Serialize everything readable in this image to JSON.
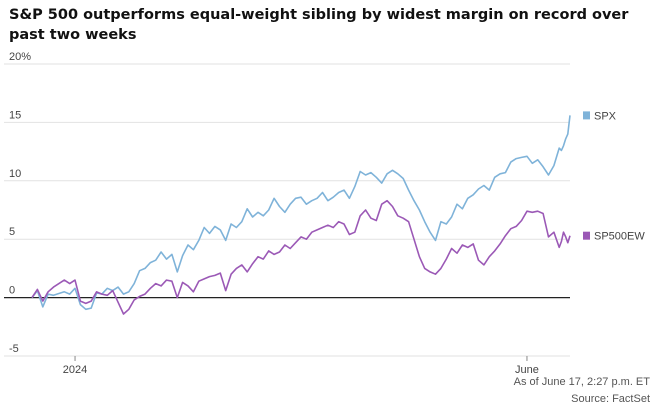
{
  "chart_data": {
    "type": "line",
    "title": "S&P 500 outperforms equal-weight sibling by widest margin on record over past two weeks",
    "y_unit": "%",
    "ylim": [
      -5,
      20
    ],
    "y_ticks": [
      20,
      15,
      10,
      5,
      0,
      -5
    ],
    "y_tick_labels": [
      "20%",
      "15",
      "10",
      "5",
      "0",
      "-5"
    ],
    "x_tick_labels": [
      "2024",
      "June"
    ],
    "x_ticks": [
      2024.0,
      2024.42
    ],
    "xlim": [
      2023.96,
      2024.46
    ],
    "grid": true,
    "legend": "right",
    "series": [
      {
        "name": "SPX",
        "color": "#7fb3d9",
        "points": [
          [
            2023.96,
            0
          ],
          [
            2023.965,
            0.6
          ],
          [
            2023.97,
            -0.8
          ],
          [
            2023.975,
            0.3
          ],
          [
            2023.98,
            0.2
          ],
          [
            2023.99,
            0.5
          ],
          [
            2023.995,
            0.3
          ],
          [
            2024.0,
            0.8
          ],
          [
            2024.005,
            -0.6
          ],
          [
            2024.01,
            -1.0
          ],
          [
            2024.015,
            -0.9
          ],
          [
            2024.02,
            0.4
          ],
          [
            2024.025,
            0.3
          ],
          [
            2024.03,
            0.8
          ],
          [
            2024.035,
            0.6
          ],
          [
            2024.04,
            0.9
          ],
          [
            2024.045,
            0.3
          ],
          [
            2024.05,
            0.5
          ],
          [
            2024.055,
            1.2
          ],
          [
            2024.06,
            2.3
          ],
          [
            2024.065,
            2.5
          ],
          [
            2024.07,
            3.0
          ],
          [
            2024.075,
            3.2
          ],
          [
            2024.08,
            3.9
          ],
          [
            2024.085,
            3.3
          ],
          [
            2024.09,
            3.7
          ],
          [
            2024.095,
            2.2
          ],
          [
            2024.1,
            3.6
          ],
          [
            2024.105,
            4.5
          ],
          [
            2024.11,
            4.1
          ],
          [
            2024.115,
            4.9
          ],
          [
            2024.12,
            6.0
          ],
          [
            2024.125,
            5.5
          ],
          [
            2024.13,
            6.1
          ],
          [
            2024.135,
            5.8
          ],
          [
            2024.14,
            4.9
          ],
          [
            2024.145,
            6.3
          ],
          [
            2024.15,
            6.0
          ],
          [
            2024.155,
            6.5
          ],
          [
            2024.16,
            7.6
          ],
          [
            2024.165,
            6.9
          ],
          [
            2024.17,
            7.3
          ],
          [
            2024.175,
            7.0
          ],
          [
            2024.18,
            7.5
          ],
          [
            2024.185,
            8.5
          ],
          [
            2024.19,
            7.8
          ],
          [
            2024.195,
            7.3
          ],
          [
            2024.2,
            8.0
          ],
          [
            2024.205,
            8.5
          ],
          [
            2024.21,
            8.6
          ],
          [
            2024.215,
            8.0
          ],
          [
            2024.22,
            8.3
          ],
          [
            2024.225,
            8.5
          ],
          [
            2024.23,
            9.0
          ],
          [
            2024.235,
            8.3
          ],
          [
            2024.24,
            8.6
          ],
          [
            2024.245,
            9.0
          ],
          [
            2024.25,
            9.2
          ],
          [
            2024.255,
            8.5
          ],
          [
            2024.26,
            9.5
          ],
          [
            2024.265,
            10.8
          ],
          [
            2024.27,
            10.5
          ],
          [
            2024.275,
            10.7
          ],
          [
            2024.28,
            10.3
          ],
          [
            2024.285,
            9.8
          ],
          [
            2024.29,
            10.6
          ],
          [
            2024.295,
            10.9
          ],
          [
            2024.3,
            10.6
          ],
          [
            2024.305,
            10.2
          ],
          [
            2024.31,
            9.2
          ],
          [
            2024.315,
            8.3
          ],
          [
            2024.32,
            7.5
          ],
          [
            2024.325,
            6.5
          ],
          [
            2024.33,
            5.6
          ],
          [
            2024.335,
            4.9
          ],
          [
            2024.34,
            6.5
          ],
          [
            2024.345,
            6.3
          ],
          [
            2024.35,
            6.9
          ],
          [
            2024.355,
            8.0
          ],
          [
            2024.36,
            7.6
          ],
          [
            2024.365,
            8.5
          ],
          [
            2024.37,
            8.8
          ],
          [
            2024.375,
            9.3
          ],
          [
            2024.38,
            9.6
          ],
          [
            2024.385,
            9.2
          ],
          [
            2024.39,
            10.3
          ],
          [
            2024.395,
            10.6
          ],
          [
            2024.4,
            10.7
          ],
          [
            2024.405,
            11.6
          ],
          [
            2024.41,
            11.9
          ],
          [
            2024.415,
            12.0
          ],
          [
            2024.42,
            12.1
          ],
          [
            2024.425,
            11.5
          ],
          [
            2024.43,
            11.8
          ],
          [
            2024.435,
            11.2
          ],
          [
            2024.44,
            10.5
          ],
          [
            2024.445,
            11.3
          ],
          [
            2024.45,
            12.8
          ],
          [
            2024.452,
            12.6
          ],
          [
            2024.454,
            13.0
          ],
          [
            2024.456,
            13.6
          ],
          [
            2024.458,
            14.0
          ],
          [
            2024.46,
            15.6
          ]
        ]
      },
      {
        "name": "SP500EW",
        "color": "#9b59b6",
        "points": [
          [
            2023.96,
            0
          ],
          [
            2023.965,
            0.7
          ],
          [
            2023.97,
            -0.3
          ],
          [
            2023.975,
            0.5
          ],
          [
            2023.98,
            0.9
          ],
          [
            2023.99,
            1.5
          ],
          [
            2023.995,
            1.2
          ],
          [
            2024.0,
            1.5
          ],
          [
            2024.005,
            -0.3
          ],
          [
            2024.01,
            -0.5
          ],
          [
            2024.015,
            -0.3
          ],
          [
            2024.02,
            0.5
          ],
          [
            2024.025,
            0.3
          ],
          [
            2024.03,
            0.2
          ],
          [
            2024.035,
            0.6
          ],
          [
            2024.04,
            -0.4
          ],
          [
            2024.045,
            -1.4
          ],
          [
            2024.05,
            -1.0
          ],
          [
            2024.055,
            -0.2
          ],
          [
            2024.06,
            0.1
          ],
          [
            2024.065,
            0.3
          ],
          [
            2024.07,
            0.8
          ],
          [
            2024.075,
            1.2
          ],
          [
            2024.08,
            1.0
          ],
          [
            2024.085,
            1.5
          ],
          [
            2024.09,
            1.4
          ],
          [
            2024.095,
            0.0
          ],
          [
            2024.1,
            1.3
          ],
          [
            2024.105,
            1.0
          ],
          [
            2024.11,
            0.5
          ],
          [
            2024.115,
            1.4
          ],
          [
            2024.12,
            1.6
          ],
          [
            2024.125,
            1.8
          ],
          [
            2024.13,
            1.9
          ],
          [
            2024.135,
            2.1
          ],
          [
            2024.14,
            0.6
          ],
          [
            2024.145,
            2.0
          ],
          [
            2024.15,
            2.5
          ],
          [
            2024.155,
            2.8
          ],
          [
            2024.16,
            2.2
          ],
          [
            2024.165,
            2.9
          ],
          [
            2024.17,
            3.5
          ],
          [
            2024.175,
            3.3
          ],
          [
            2024.18,
            4.0
          ],
          [
            2024.185,
            3.7
          ],
          [
            2024.19,
            3.9
          ],
          [
            2024.195,
            4.5
          ],
          [
            2024.2,
            4.2
          ],
          [
            2024.205,
            4.7
          ],
          [
            2024.21,
            5.2
          ],
          [
            2024.215,
            5.0
          ],
          [
            2024.22,
            5.6
          ],
          [
            2024.225,
            5.8
          ],
          [
            2024.23,
            6.0
          ],
          [
            2024.235,
            6.2
          ],
          [
            2024.24,
            6.0
          ],
          [
            2024.245,
            6.5
          ],
          [
            2024.25,
            6.3
          ],
          [
            2024.255,
            5.4
          ],
          [
            2024.26,
            5.6
          ],
          [
            2024.265,
            7.0
          ],
          [
            2024.27,
            7.5
          ],
          [
            2024.275,
            6.8
          ],
          [
            2024.28,
            6.6
          ],
          [
            2024.285,
            8.0
          ],
          [
            2024.29,
            8.3
          ],
          [
            2024.295,
            7.8
          ],
          [
            2024.3,
            7.0
          ],
          [
            2024.305,
            6.8
          ],
          [
            2024.31,
            6.5
          ],
          [
            2024.315,
            5.0
          ],
          [
            2024.32,
            3.5
          ],
          [
            2024.325,
            2.5
          ],
          [
            2024.33,
            2.2
          ],
          [
            2024.335,
            2.0
          ],
          [
            2024.34,
            2.5
          ],
          [
            2024.345,
            3.3
          ],
          [
            2024.35,
            4.2
          ],
          [
            2024.355,
            3.8
          ],
          [
            2024.36,
            4.5
          ],
          [
            2024.365,
            4.3
          ],
          [
            2024.37,
            4.6
          ],
          [
            2024.375,
            3.2
          ],
          [
            2024.38,
            2.8
          ],
          [
            2024.385,
            3.5
          ],
          [
            2024.39,
            4.0
          ],
          [
            2024.395,
            4.6
          ],
          [
            2024.4,
            5.3
          ],
          [
            2024.405,
            5.9
          ],
          [
            2024.41,
            6.1
          ],
          [
            2024.415,
            6.6
          ],
          [
            2024.42,
            7.4
          ],
          [
            2024.425,
            7.3
          ],
          [
            2024.43,
            7.4
          ],
          [
            2024.435,
            7.2
          ],
          [
            2024.44,
            5.2
          ],
          [
            2024.445,
            5.6
          ],
          [
            2024.45,
            4.3
          ],
          [
            2024.452,
            4.8
          ],
          [
            2024.454,
            5.6
          ],
          [
            2024.456,
            5.2
          ],
          [
            2024.458,
            4.7
          ],
          [
            2024.46,
            5.3
          ]
        ]
      }
    ]
  },
  "footer": {
    "timestamp": "As of June 17, 2:27 p.m. ET",
    "source": "Source: FactSet"
  }
}
